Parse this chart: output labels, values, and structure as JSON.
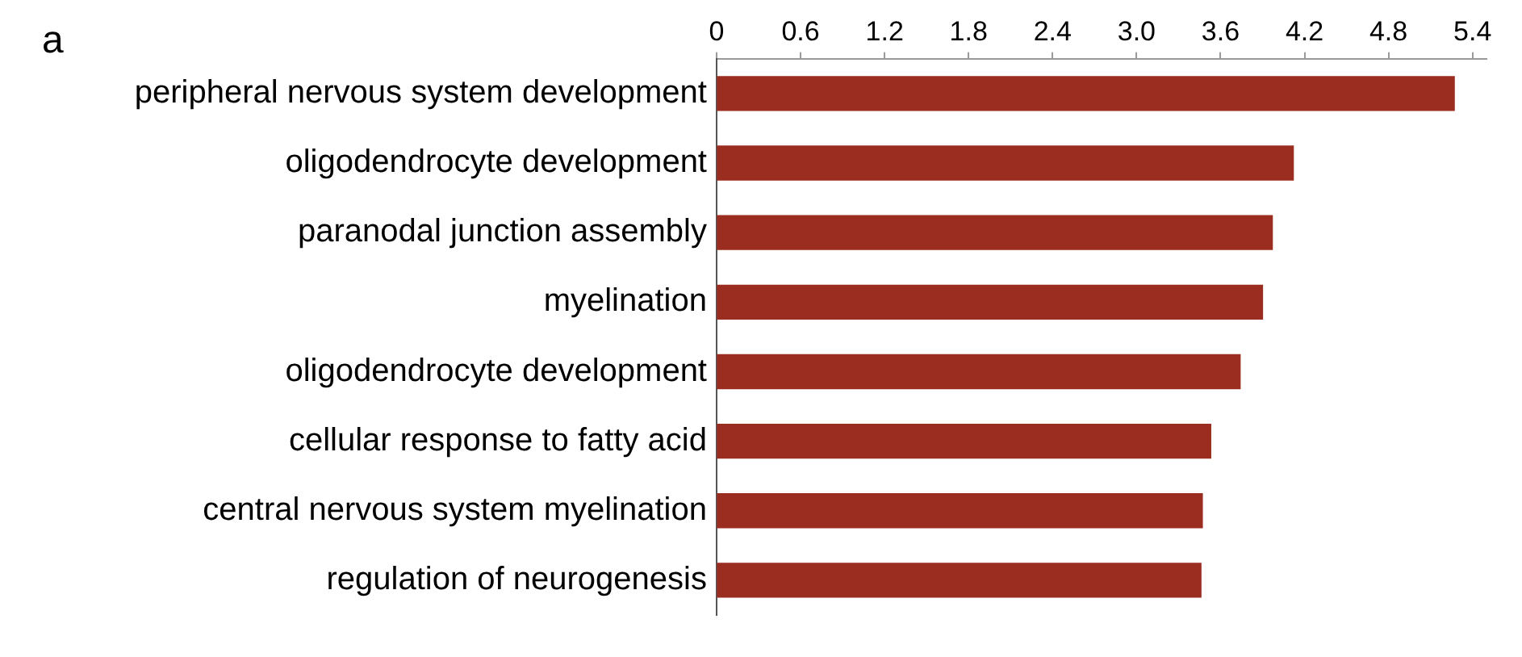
{
  "chart_data": {
    "type": "bar",
    "orientation": "horizontal",
    "annotations": [
      "a"
    ],
    "categories": [
      "peripheral nervous system development",
      "oligodendrocyte development",
      "paranodal junction assembly",
      "myelination",
      "oligodendrocyte development",
      "cellular response to fatty acid",
      "central nervous system myelination",
      "regulation of neurogenesis"
    ],
    "values": [
      5.27,
      4.12,
      3.97,
      3.9,
      3.74,
      3.53,
      3.47,
      3.46
    ],
    "color": "#9b2d20",
    "xlim": [
      0,
      5.5
    ],
    "xticks": [
      0,
      0.6,
      1.2,
      1.8,
      2.4,
      {
        "value": 3.0,
        "label": "3.0"
      },
      3.6,
      4.2,
      4.8,
      5.4
    ],
    "grid": false,
    "legend": false
  }
}
